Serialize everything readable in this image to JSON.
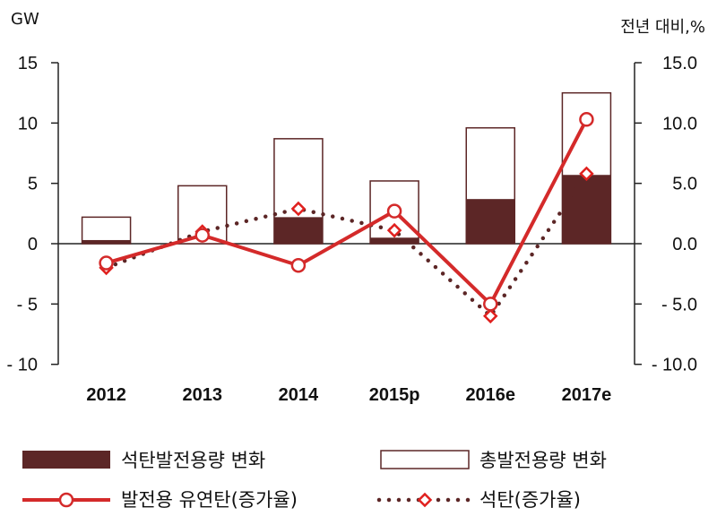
{
  "chart_data": {
    "type": "bar",
    "categories": [
      "2012",
      "2013",
      "2014",
      "2015p",
      "2016e",
      "2017e"
    ],
    "left_axis": {
      "unit": "GW",
      "ylim": [
        -10,
        15
      ],
      "ticks": [
        "15",
        "10",
        "5",
        "0",
        "- 5",
        "- 10"
      ],
      "tick_values": [
        15,
        10,
        5,
        0,
        -5,
        -10
      ]
    },
    "right_axis": {
      "unit": "전년 대비,%",
      "ylim": [
        -10,
        15
      ],
      "ticks": [
        "15.0",
        "10.0",
        "5.0",
        "0.0",
        "- 5.0",
        "- 10.0"
      ],
      "tick_values": [
        15,
        10,
        5,
        0,
        -5,
        -10
      ]
    },
    "series": [
      {
        "name": "석탄발전용량 변화",
        "kind": "bar-filled",
        "axis": "left",
        "color": "#5c2626",
        "values": [
          0.3,
          0.0,
          2.2,
          0.5,
          3.7,
          5.7
        ]
      },
      {
        "name": "총발전용량 변화",
        "kind": "bar-outline",
        "axis": "left",
        "color": "#5c2626",
        "values": [
          2.2,
          4.8,
          8.7,
          5.2,
          9.6,
          12.5
        ]
      },
      {
        "name": "발전용 유연탄(증가율)",
        "kind": "line",
        "axis": "right",
        "color": "#d42a2a",
        "values": [
          -1.6,
          0.7,
          -1.8,
          2.7,
          -5.0,
          10.3
        ]
      },
      {
        "name": "석탄(증가율)",
        "kind": "dotted-line",
        "axis": "right",
        "color": "#5c2626",
        "marker_color": "#e0201e",
        "values": [
          -2.0,
          1.0,
          2.9,
          1.1,
          -6.0,
          5.8
        ]
      }
    ]
  }
}
